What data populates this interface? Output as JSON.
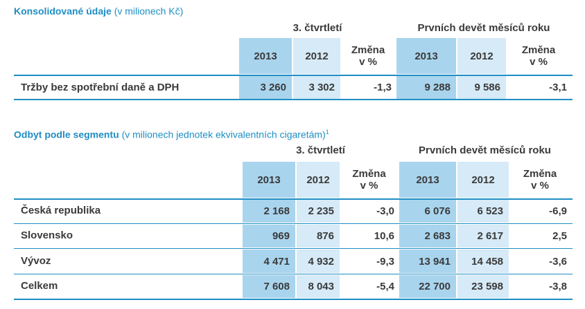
{
  "table1": {
    "title_bold": "Konsolidované údaje",
    "title_norm": " (v milionech Kč)",
    "group_q3": "3. čtvrtletí",
    "group_9m": "Prvních devět měsíců roku",
    "col_2013": "2013",
    "col_2012": "2012",
    "col_change_line1": "Změna",
    "col_change_line2": "v %",
    "rows": [
      {
        "label": "Tržby bez spotřební daně a DPH",
        "q3_2013": "3 260",
        "q3_2012": "3 302",
        "q3_chg": "-1,3",
        "m9_2013": "9 288",
        "m9_2012": "9 586",
        "m9_chg": "-3,1"
      }
    ]
  },
  "table2": {
    "title_bold": "Odbyt podle segmentu",
    "title_norm": " (v milionech jednotek ekvivalentních cigaretám)",
    "title_sup": "1",
    "group_q3": "3. čtvrtletí",
    "group_9m": "Prvních devět měsíců roku",
    "col_2013": "2013",
    "col_2012": "2012",
    "col_change_line1": "Změna",
    "col_change_line2": "v %",
    "rows": [
      {
        "label": "Česká republika",
        "q3_2013": "2 168",
        "q3_2012": "2 235",
        "q3_chg": "-3,0",
        "m9_2013": "6 076",
        "m9_2012": "6 523",
        "m9_chg": "-6,9"
      },
      {
        "label": "Slovensko",
        "q3_2013": "969",
        "q3_2012": "876",
        "q3_chg": "10,6",
        "m9_2013": "2 683",
        "m9_2012": "2 617",
        "m9_chg": "2,5"
      },
      {
        "label": "Vývoz",
        "q3_2013": "4 471",
        "q3_2012": "4 932",
        "q3_chg": "-9,3",
        "m9_2013": "13 941",
        "m9_2012": "14 458",
        "m9_chg": "-3,6"
      },
      {
        "label": "Celkem",
        "q3_2013": "7 608",
        "q3_2012": "8 043",
        "q3_chg": "-5,4",
        "m9_2013": "22 700",
        "m9_2012": "23 598",
        "m9_chg": "-3,8"
      }
    ]
  }
}
